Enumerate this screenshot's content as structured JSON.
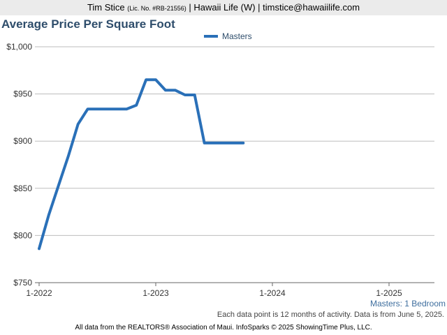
{
  "header": {
    "agent_name": "Tim Stice",
    "license": "(Lic. No. #RB-21556)",
    "rest": " | Hawaii Life (W) | timstice@hawaiilife.com"
  },
  "chart_data": {
    "type": "line",
    "title": "Average Price Per Square Foot",
    "xlabel": "",
    "ylabel": "",
    "x_ticks": [
      "1-2022",
      "1-2023",
      "1-2024",
      "1-2025"
    ],
    "y_ticks": [
      "$750",
      "$800",
      "$850",
      "$900",
      "$950",
      "$1,000"
    ],
    "ylim": [
      750,
      1000
    ],
    "xlim": [
      "2022-01",
      "2025-06"
    ],
    "grid": "horizontal",
    "legend": "top-center",
    "series": [
      {
        "name": "Masters",
        "color": "#2a70b8",
        "points": [
          {
            "x": "2022-01",
            "y": 786
          },
          {
            "x": "2022-02",
            "y": 822
          },
          {
            "x": "2022-03",
            "y": 853
          },
          {
            "x": "2022-04",
            "y": 884
          },
          {
            "x": "2022-05",
            "y": 918
          },
          {
            "x": "2022-06",
            "y": 934
          },
          {
            "x": "2022-07",
            "y": 934
          },
          {
            "x": "2022-08",
            "y": 934
          },
          {
            "x": "2022-09",
            "y": 934
          },
          {
            "x": "2022-10",
            "y": 934
          },
          {
            "x": "2022-11",
            "y": 938
          },
          {
            "x": "2022-12",
            "y": 965
          },
          {
            "x": "2023-01",
            "y": 965
          },
          {
            "x": "2023-02",
            "y": 954
          },
          {
            "x": "2023-03",
            "y": 954
          },
          {
            "x": "2023-04",
            "y": 949
          },
          {
            "x": "2023-05",
            "y": 949
          },
          {
            "x": "2023-06",
            "y": 898
          },
          {
            "x": "2023-07",
            "y": 898
          },
          {
            "x": "2023-08",
            "y": 898
          },
          {
            "x": "2023-09",
            "y": 898
          },
          {
            "x": "2023-10",
            "y": 898
          }
        ]
      }
    ]
  },
  "subnote": "Masters: 1 Bedroom",
  "note": "Each data point is 12 months of activity. Data is from June 5, 2025.",
  "footer": "All data from the REALTORS® Association of Maui. InfoSparks © 2025 ShowingTime Plus, LLC."
}
